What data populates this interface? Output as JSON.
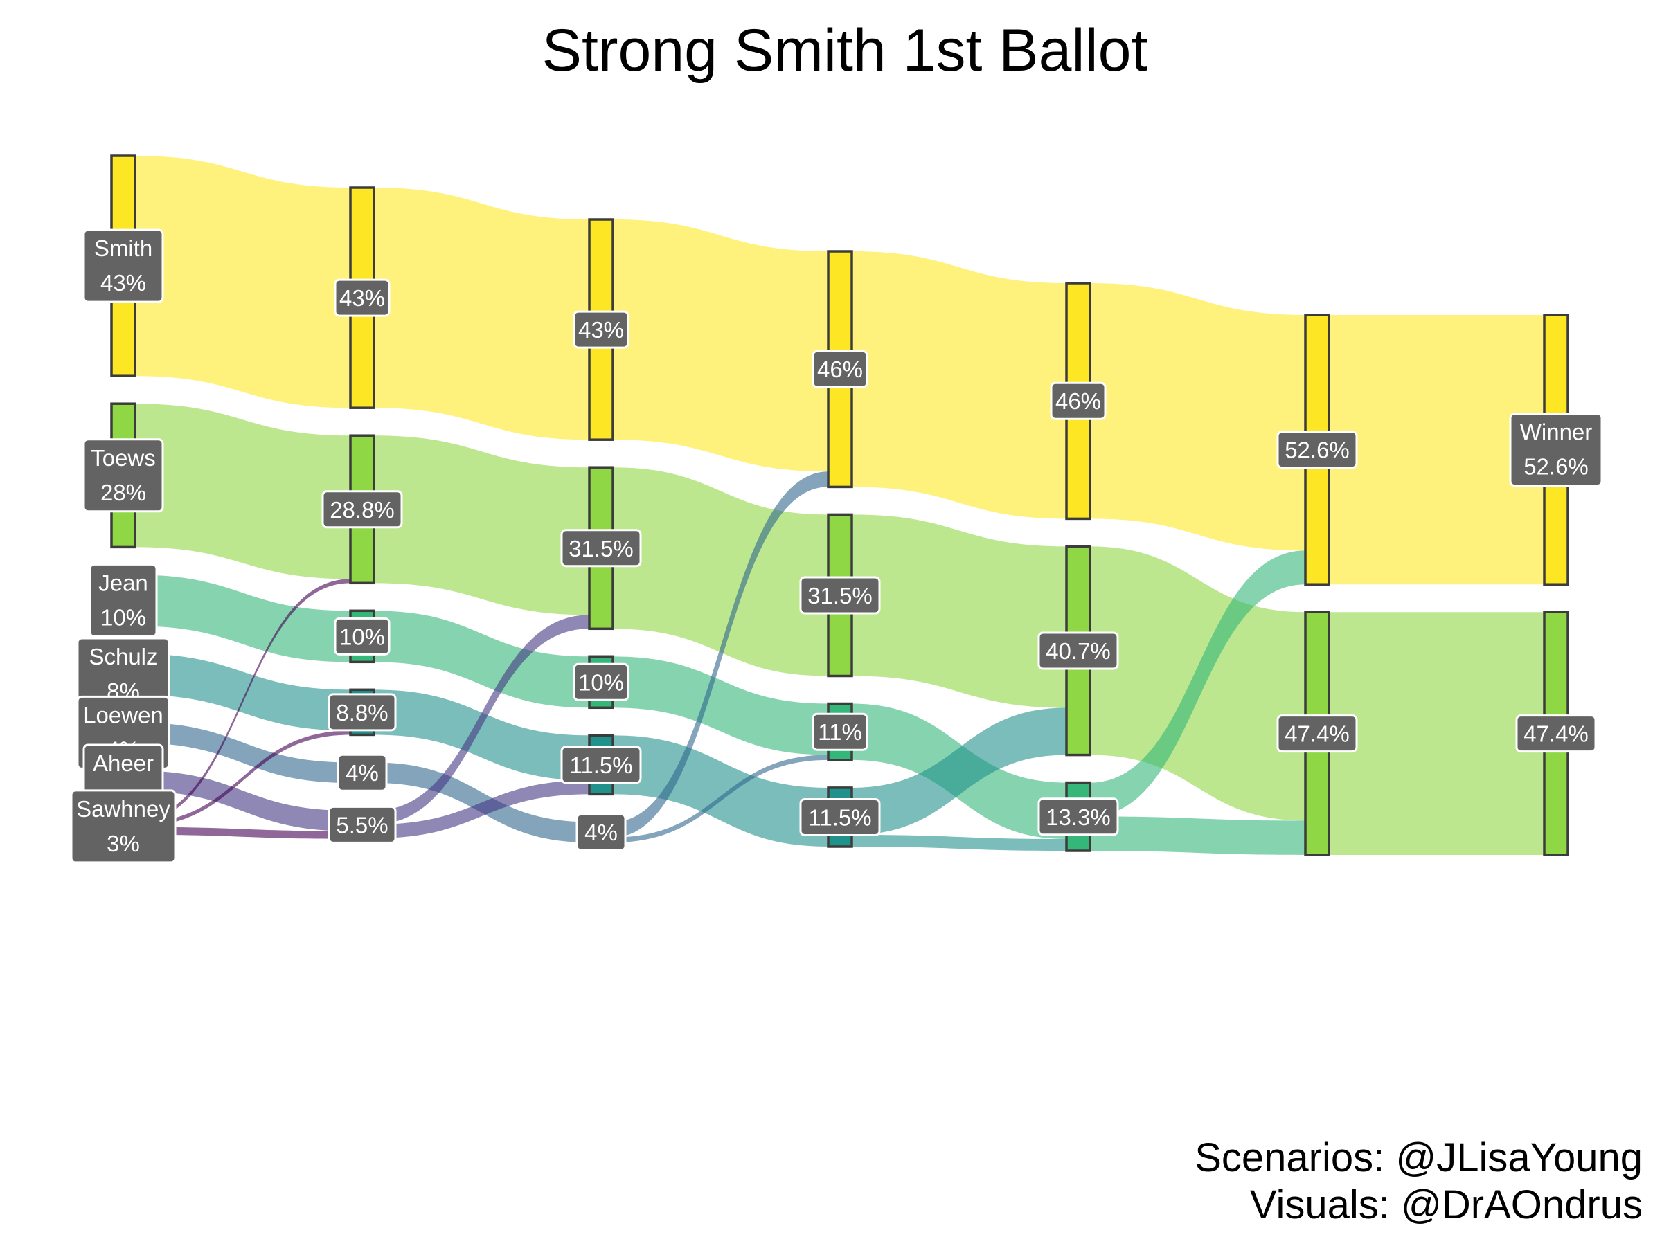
{
  "chart_data": {
    "type": "sankey",
    "title": "Strong Smith 1st Ballot",
    "credits": [
      "Scenarios: @JLisaYoung",
      "Visuals: @DrAOndrus"
    ],
    "colors": {
      "Smith": "#fde725",
      "Toews": "#8fd744",
      "Jean": "#35b779",
      "Schulz": "#21918c",
      "Loewen": "#31688e",
      "Aheer": "#443983",
      "Sawhney": "#440154",
      "label_bg": "#636363"
    },
    "stages": [
      {
        "nodes": [
          {
            "id": "Smith",
            "name": "Smith",
            "value": 43,
            "label": "43%"
          },
          {
            "id": "Toews",
            "name": "Toews",
            "value": 28,
            "label": "28%"
          },
          {
            "id": "Jean",
            "name": "Jean",
            "value": 10,
            "label": "10%"
          },
          {
            "id": "Schulz",
            "name": "Schulz",
            "value": 8,
            "label": "8%"
          },
          {
            "id": "Loewen",
            "name": "Loewen",
            "value": 4,
            "label": "4%"
          },
          {
            "id": "Aheer",
            "name": "Aheer",
            "value": 4,
            "label": "4%"
          },
          {
            "id": "Sawhney",
            "name": "Sawhney",
            "value": 3,
            "label": "3%"
          }
        ]
      },
      {
        "nodes": [
          {
            "id": "Smith",
            "value": 43,
            "label": "43%"
          },
          {
            "id": "Toews",
            "value": 28.8,
            "label": "28.8%"
          },
          {
            "id": "Jean",
            "value": 10,
            "label": "10%"
          },
          {
            "id": "Schulz",
            "value": 8.8,
            "label": "8.8%"
          },
          {
            "id": "Loewen",
            "value": 4,
            "label": "4%"
          },
          {
            "id": "Aheer",
            "value": 5.5,
            "label": "5.5%"
          }
        ]
      },
      {
        "nodes": [
          {
            "id": "Smith",
            "value": 43,
            "label": "43%"
          },
          {
            "id": "Toews",
            "value": 31.5,
            "label": "31.5%"
          },
          {
            "id": "Jean",
            "value": 10,
            "label": "10%"
          },
          {
            "id": "Schulz",
            "value": 11.5,
            "label": "11.5%"
          },
          {
            "id": "Loewen",
            "value": 4,
            "label": "4%"
          }
        ]
      },
      {
        "nodes": [
          {
            "id": "Smith",
            "value": 46,
            "label": "46%"
          },
          {
            "id": "Toews",
            "value": 31.5,
            "label": "31.5%"
          },
          {
            "id": "Jean",
            "value": 11,
            "label": "11%"
          },
          {
            "id": "Schulz",
            "value": 11.5,
            "label": "11.5%"
          }
        ]
      },
      {
        "nodes": [
          {
            "id": "Smith",
            "value": 46,
            "label": "46%"
          },
          {
            "id": "Toews",
            "value": 40.7,
            "label": "40.7%"
          },
          {
            "id": "Jean",
            "value": 13.3,
            "label": "13.3%"
          }
        ]
      },
      {
        "nodes": [
          {
            "id": "Smith",
            "value": 52.6,
            "label": "52.6%"
          },
          {
            "id": "Toews",
            "value": 47.4,
            "label": "47.4%"
          }
        ]
      },
      {
        "nodes": [
          {
            "id": "Smith",
            "name": "Winner",
            "value": 52.6,
            "label": "52.6%"
          },
          {
            "id": "Toews",
            "value": 47.4,
            "label": "47.4%"
          }
        ]
      }
    ],
    "flows": [
      {
        "stage": 0,
        "from": "Smith",
        "to": "Smith",
        "value": 43
      },
      {
        "stage": 0,
        "from": "Toews",
        "to": "Toews",
        "value": 28
      },
      {
        "stage": 0,
        "from": "Jean",
        "to": "Jean",
        "value": 10
      },
      {
        "stage": 0,
        "from": "Schulz",
        "to": "Schulz",
        "value": 8
      },
      {
        "stage": 0,
        "from": "Loewen",
        "to": "Loewen",
        "value": 4
      },
      {
        "stage": 0,
        "from": "Aheer",
        "to": "Aheer",
        "value": 4
      },
      {
        "stage": 0,
        "from": "Sawhney",
        "to": "Toews",
        "value": 0.8
      },
      {
        "stage": 0,
        "from": "Sawhney",
        "to": "Schulz",
        "value": 0.8
      },
      {
        "stage": 0,
        "from": "Sawhney",
        "to": "Aheer",
        "value": 1.5
      },
      {
        "stage": 1,
        "from": "Smith",
        "to": "Smith",
        "value": 43
      },
      {
        "stage": 1,
        "from": "Toews",
        "to": "Toews",
        "value": 28.8
      },
      {
        "stage": 1,
        "from": "Jean",
        "to": "Jean",
        "value": 10
      },
      {
        "stage": 1,
        "from": "Schulz",
        "to": "Schulz",
        "value": 8.8
      },
      {
        "stage": 1,
        "from": "Loewen",
        "to": "Loewen",
        "value": 4
      },
      {
        "stage": 1,
        "from": "Aheer",
        "to": "Toews",
        "value": 2.7
      },
      {
        "stage": 1,
        "from": "Aheer",
        "to": "Schulz",
        "value": 2.7
      },
      {
        "stage": 2,
        "from": "Smith",
        "to": "Smith",
        "value": 43
      },
      {
        "stage": 2,
        "from": "Toews",
        "to": "Toews",
        "value": 31.5
      },
      {
        "stage": 2,
        "from": "Jean",
        "to": "Jean",
        "value": 10
      },
      {
        "stage": 2,
        "from": "Schulz",
        "to": "Schulz",
        "value": 11.5
      },
      {
        "stage": 2,
        "from": "Loewen",
        "to": "Smith",
        "value": 3
      },
      {
        "stage": 2,
        "from": "Loewen",
        "to": "Jean",
        "value": 1
      },
      {
        "stage": 3,
        "from": "Smith",
        "to": "Smith",
        "value": 46
      },
      {
        "stage": 3,
        "from": "Toews",
        "to": "Toews",
        "value": 31.5
      },
      {
        "stage": 3,
        "from": "Jean",
        "to": "Jean",
        "value": 11
      },
      {
        "stage": 3,
        "from": "Schulz",
        "to": "Toews",
        "value": 9.2
      },
      {
        "stage": 3,
        "from": "Schulz",
        "to": "Jean",
        "value": 2.3
      },
      {
        "stage": 4,
        "from": "Smith",
        "to": "Smith",
        "value": 46
      },
      {
        "stage": 4,
        "from": "Toews",
        "to": "Toews",
        "value": 40.7
      },
      {
        "stage": 4,
        "from": "Jean",
        "to": "Smith",
        "value": 6.6
      },
      {
        "stage": 4,
        "from": "Jean",
        "to": "Toews",
        "value": 6.7
      },
      {
        "stage": 5,
        "from": "Smith",
        "to": "Smith",
        "value": 52.6
      },
      {
        "stage": 5,
        "from": "Toews",
        "to": "Toews",
        "value": 47.4
      }
    ]
  }
}
